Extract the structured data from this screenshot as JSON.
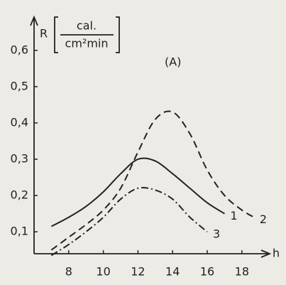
{
  "chart_data": {
    "type": "line",
    "y_label": "R",
    "y_unit_numerator": "cal.",
    "y_unit_denominator": "cm²min",
    "x_label": "h",
    "annotation": "(A)",
    "x": [
      7,
      8,
      9,
      10,
      11,
      12,
      13,
      14,
      15,
      16,
      17,
      18,
      18.7
    ],
    "series": [
      {
        "name": "1",
        "color": "#222222",
        "dash": "solid",
        "values": [
          0.115,
          0.14,
          0.17,
          0.21,
          0.26,
          0.3,
          0.295,
          0.26,
          0.22,
          0.18,
          0.15,
          null,
          null
        ]
      },
      {
        "name": "2",
        "color": "#222222",
        "dash": "dashed",
        "values": [
          0.05,
          0.085,
          0.12,
          0.16,
          0.22,
          0.32,
          0.41,
          0.43,
          0.37,
          0.27,
          0.2,
          0.16,
          0.14
        ]
      },
      {
        "name": "3",
        "color": "#222222",
        "dash": "dashdot",
        "values": [
          0.035,
          0.065,
          0.1,
          0.14,
          0.19,
          0.22,
          0.215,
          0.19,
          0.14,
          0.1,
          null,
          null,
          null
        ]
      }
    ],
    "xlim": [
      6,
      19.4
    ],
    "ylim": [
      0.02,
      0.68
    ],
    "xticks": [
      8,
      10,
      12,
      14,
      16,
      18
    ],
    "yticks": [
      {
        "value": 0.1,
        "label": "0,1"
      },
      {
        "value": 0.2,
        "label": "0,2"
      },
      {
        "value": 0.3,
        "label": "0,3"
      },
      {
        "value": 0.4,
        "label": "0,4"
      },
      {
        "value": 0.5,
        "label": "0,5"
      },
      {
        "value": 0.6,
        "label": "0,6"
      }
    ],
    "grid": false
  }
}
